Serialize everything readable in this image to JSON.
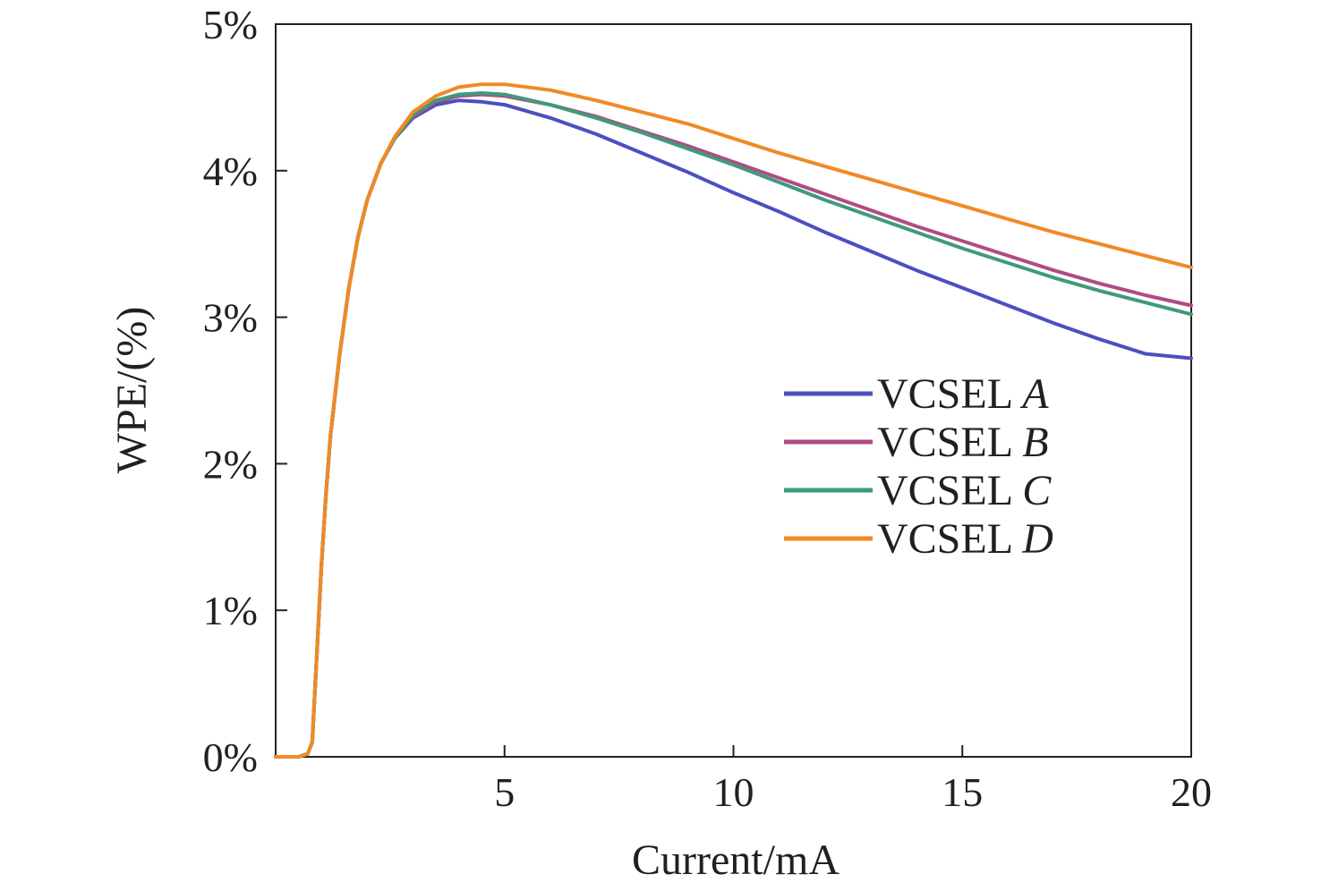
{
  "chart_data": {
    "type": "line",
    "xlabel": "Current/mA",
    "ylabel": "WPE/(%)",
    "xlim": [
      0,
      20
    ],
    "ylim": [
      0,
      5
    ],
    "x_ticks": [
      {
        "value": 5,
        "label": "5"
      },
      {
        "value": 10,
        "label": "10"
      },
      {
        "value": 15,
        "label": "15"
      },
      {
        "value": 20,
        "label": "20"
      }
    ],
    "y_ticks": [
      {
        "value": 0,
        "label": "0%"
      },
      {
        "value": 1,
        "label": "1%"
      },
      {
        "value": 2,
        "label": "2%"
      },
      {
        "value": 3,
        "label": "3%"
      },
      {
        "value": 4,
        "label": "4%"
      },
      {
        "value": 5,
        "label": "5%"
      }
    ],
    "grid": false,
    "legend_position": "right",
    "series": [
      {
        "name_prefix": "VCSEL ",
        "name_suffix": "A",
        "color": "#4b4fc0",
        "points": [
          [
            0,
            0
          ],
          [
            0.5,
            0
          ],
          [
            0.7,
            0.02
          ],
          [
            0.8,
            0.1
          ],
          [
            0.9,
            0.7
          ],
          [
            1.0,
            1.3
          ],
          [
            1.1,
            1.8
          ],
          [
            1.2,
            2.2
          ],
          [
            1.4,
            2.75
          ],
          [
            1.6,
            3.2
          ],
          [
            1.8,
            3.55
          ],
          [
            2.0,
            3.8
          ],
          [
            2.3,
            4.05
          ],
          [
            2.6,
            4.22
          ],
          [
            3.0,
            4.36
          ],
          [
            3.5,
            4.45
          ],
          [
            4.0,
            4.48
          ],
          [
            4.5,
            4.47
          ],
          [
            5.0,
            4.45
          ],
          [
            6.0,
            4.36
          ],
          [
            7.0,
            4.25
          ],
          [
            8.0,
            4.12
          ],
          [
            9.0,
            3.99
          ],
          [
            10.0,
            3.85
          ],
          [
            11.0,
            3.72
          ],
          [
            12.0,
            3.58
          ],
          [
            13.0,
            3.45
          ],
          [
            14.0,
            3.32
          ],
          [
            15.0,
            3.2
          ],
          [
            16.0,
            3.08
          ],
          [
            17.0,
            2.96
          ],
          [
            18.0,
            2.85
          ],
          [
            19.0,
            2.75
          ],
          [
            20.0,
            2.72
          ]
        ]
      },
      {
        "name_prefix": "VCSEL ",
        "name_suffix": "B",
        "color": "#b04b86",
        "points": [
          [
            0,
            0
          ],
          [
            0.5,
            0
          ],
          [
            0.7,
            0.02
          ],
          [
            0.8,
            0.1
          ],
          [
            0.9,
            0.7
          ],
          [
            1.0,
            1.3
          ],
          [
            1.1,
            1.8
          ],
          [
            1.2,
            2.2
          ],
          [
            1.4,
            2.75
          ],
          [
            1.6,
            3.2
          ],
          [
            1.8,
            3.55
          ],
          [
            2.0,
            3.8
          ],
          [
            2.3,
            4.05
          ],
          [
            2.6,
            4.22
          ],
          [
            3.0,
            4.37
          ],
          [
            3.5,
            4.47
          ],
          [
            4.0,
            4.51
          ],
          [
            4.5,
            4.52
          ],
          [
            5.0,
            4.51
          ],
          [
            6.0,
            4.45
          ],
          [
            7.0,
            4.37
          ],
          [
            8.0,
            4.27
          ],
          [
            9.0,
            4.17
          ],
          [
            10.0,
            4.06
          ],
          [
            11.0,
            3.95
          ],
          [
            12.0,
            3.84
          ],
          [
            13.0,
            3.73
          ],
          [
            14.0,
            3.62
          ],
          [
            15.0,
            3.52
          ],
          [
            16.0,
            3.42
          ],
          [
            17.0,
            3.32
          ],
          [
            18.0,
            3.23
          ],
          [
            19.0,
            3.15
          ],
          [
            20.0,
            3.08
          ]
        ]
      },
      {
        "name_prefix": "VCSEL ",
        "name_suffix": "C",
        "color": "#3f9a7c",
        "points": [
          [
            0,
            0
          ],
          [
            0.5,
            0
          ],
          [
            0.7,
            0.02
          ],
          [
            0.8,
            0.1
          ],
          [
            0.9,
            0.7
          ],
          [
            1.0,
            1.3
          ],
          [
            1.1,
            1.8
          ],
          [
            1.2,
            2.2
          ],
          [
            1.4,
            2.75
          ],
          [
            1.6,
            3.2
          ],
          [
            1.8,
            3.55
          ],
          [
            2.0,
            3.8
          ],
          [
            2.3,
            4.05
          ],
          [
            2.6,
            4.22
          ],
          [
            3.0,
            4.38
          ],
          [
            3.5,
            4.48
          ],
          [
            4.0,
            4.52
          ],
          [
            4.5,
            4.53
          ],
          [
            5.0,
            4.52
          ],
          [
            6.0,
            4.45
          ],
          [
            7.0,
            4.36
          ],
          [
            8.0,
            4.26
          ],
          [
            9.0,
            4.15
          ],
          [
            10.0,
            4.04
          ],
          [
            11.0,
            3.92
          ],
          [
            12.0,
            3.8
          ],
          [
            13.0,
            3.69
          ],
          [
            14.0,
            3.58
          ],
          [
            15.0,
            3.47
          ],
          [
            16.0,
            3.37
          ],
          [
            17.0,
            3.27
          ],
          [
            18.0,
            3.18
          ],
          [
            19.0,
            3.1
          ],
          [
            20.0,
            3.02
          ]
        ]
      },
      {
        "name_prefix": "VCSEL ",
        "name_suffix": "D",
        "color": "#f08a24",
        "points": [
          [
            0,
            0
          ],
          [
            0.5,
            0
          ],
          [
            0.7,
            0.02
          ],
          [
            0.8,
            0.1
          ],
          [
            0.9,
            0.7
          ],
          [
            1.0,
            1.3
          ],
          [
            1.1,
            1.8
          ],
          [
            1.2,
            2.2
          ],
          [
            1.4,
            2.75
          ],
          [
            1.6,
            3.2
          ],
          [
            1.8,
            3.55
          ],
          [
            2.0,
            3.8
          ],
          [
            2.3,
            4.05
          ],
          [
            2.6,
            4.23
          ],
          [
            3.0,
            4.4
          ],
          [
            3.5,
            4.51
          ],
          [
            4.0,
            4.57
          ],
          [
            4.5,
            4.59
          ],
          [
            5.0,
            4.59
          ],
          [
            6.0,
            4.55
          ],
          [
            7.0,
            4.48
          ],
          [
            8.0,
            4.4
          ],
          [
            9.0,
            4.32
          ],
          [
            10.0,
            4.22
          ],
          [
            11.0,
            4.12
          ],
          [
            12.0,
            4.03
          ],
          [
            13.0,
            3.94
          ],
          [
            14.0,
            3.85
          ],
          [
            15.0,
            3.76
          ],
          [
            16.0,
            3.67
          ],
          [
            17.0,
            3.58
          ],
          [
            18.0,
            3.5
          ],
          [
            19.0,
            3.42
          ],
          [
            20.0,
            3.34
          ]
        ]
      }
    ]
  }
}
